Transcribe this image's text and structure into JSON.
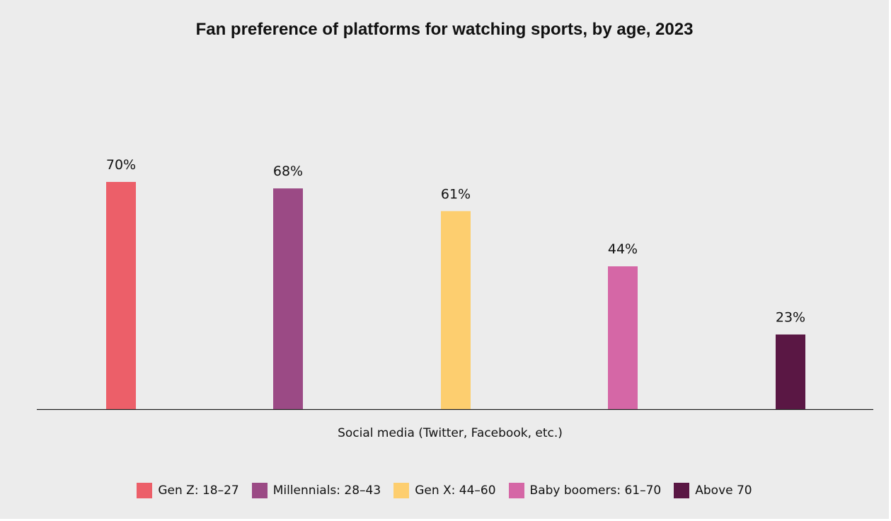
{
  "chart_data": {
    "type": "bar",
    "title": "Fan preference of platforms for watching sports, by age, 2023",
    "categories": [
      "Social media (Twitter, Facebook, etc.)"
    ],
    "series": [
      {
        "name": "Gen Z: 18–27",
        "values": [
          70
        ],
        "label": "70%",
        "color": "#ec5f69"
      },
      {
        "name": "Millennials: 28–43",
        "values": [
          68
        ],
        "label": "68%",
        "color": "#9b4a85"
      },
      {
        "name": "Gen X: 44–60",
        "values": [
          61
        ],
        "label": "61%",
        "color": "#fdce6f"
      },
      {
        "name": "Baby boomers: 61–70",
        "values": [
          44
        ],
        "label": "44%",
        "color": "#d567a6"
      },
      {
        "name": "Above 70",
        "values": [
          23
        ],
        "label": "23%",
        "color": "#5a1744"
      }
    ],
    "ylim": [
      0,
      70
    ],
    "grid": false,
    "legend": "bottom",
    "xlabel": "",
    "ylabel": ""
  }
}
